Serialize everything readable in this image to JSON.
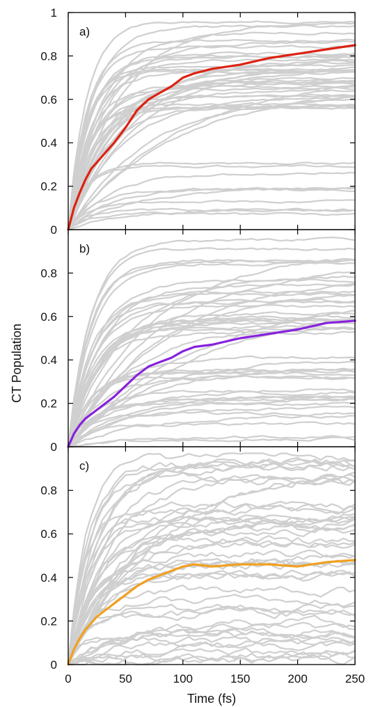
{
  "chart_data": {
    "type": "line",
    "ylabel": "CT Population",
    "xlabel": "Time (fs)",
    "xlim": [
      0,
      250
    ],
    "ylim": [
      0,
      1
    ],
    "x_ticks": [
      "0",
      "50",
      "100",
      "150",
      "200",
      "250"
    ],
    "y_ticks_top": [
      "0",
      "0.2",
      "0.4",
      "0.6",
      "0.8",
      "1"
    ],
    "y_ticks": [
      "0",
      "0.2",
      "0.4",
      "0.6",
      "0.8"
    ],
    "grid": false,
    "legend": "none",
    "colors": {
      "trajectory": "#cfcfcf",
      "frame": "#000000"
    },
    "panels": [
      {
        "label": "a)",
        "mean_color": "#dd2211",
        "series": [
          {
            "x": [
              0,
              5,
              10,
              15,
              20,
              25,
              30,
              40,
              50,
              60,
              70,
              80,
              90,
              100,
              110,
              125,
              150,
              175,
              200,
              225,
              250
            ],
            "values": [
              0,
              0.1,
              0.17,
              0.23,
              0.28,
              0.31,
              0.34,
              0.4,
              0.47,
              0.55,
              0.6,
              0.63,
              0.66,
              0.7,
              0.72,
              0.74,
              0.76,
              0.79,
              0.81,
              0.83,
              0.85
            ]
          }
        ],
        "background_trajectories": 50
      },
      {
        "label": "b)",
        "mean_color": "#8822dd",
        "series": [
          {
            "x": [
              0,
              5,
              10,
              15,
              20,
              25,
              30,
              40,
              50,
              60,
              70,
              80,
              90,
              100,
              110,
              125,
              150,
              175,
              200,
              225,
              250
            ],
            "values": [
              0,
              0.06,
              0.1,
              0.13,
              0.15,
              0.17,
              0.19,
              0.23,
              0.28,
              0.33,
              0.37,
              0.39,
              0.41,
              0.44,
              0.46,
              0.47,
              0.5,
              0.52,
              0.54,
              0.57,
              0.58
            ]
          }
        ],
        "background_trajectories": 50
      },
      {
        "label": "c)",
        "mean_color": "#f0a020",
        "series": [
          {
            "x": [
              0,
              5,
              10,
              15,
              20,
              25,
              30,
              40,
              50,
              60,
              70,
              80,
              90,
              100,
              110,
              125,
              150,
              175,
              200,
              225,
              250
            ],
            "values": [
              0,
              0.07,
              0.12,
              0.16,
              0.19,
              0.22,
              0.24,
              0.28,
              0.32,
              0.36,
              0.39,
              0.41,
              0.43,
              0.45,
              0.46,
              0.45,
              0.46,
              0.46,
              0.45,
              0.47,
              0.48
            ]
          }
        ],
        "background_trajectories": 50
      }
    ]
  }
}
